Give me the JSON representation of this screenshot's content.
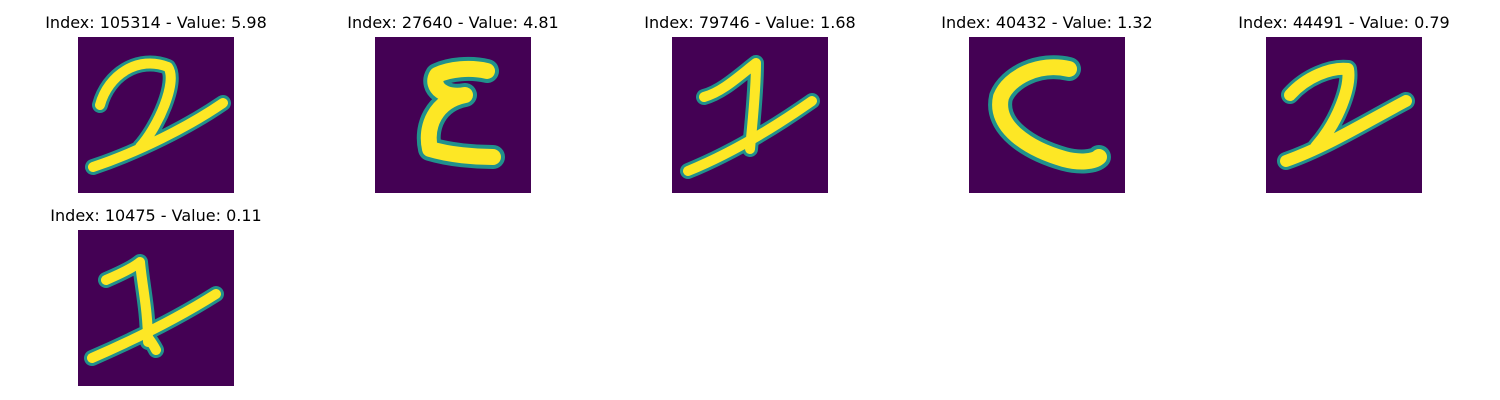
{
  "colors": {
    "background": "#440154",
    "stroke_core": "#fde725",
    "stroke_edge": "#21918c"
  },
  "panels": [
    {
      "title": "Index: 105314 - Value: 5.98",
      "glyph": "looped-two"
    },
    {
      "title": "Index: 27640 - Value: 4.81",
      "glyph": "bracket-shape"
    },
    {
      "title": "Index: 79746 - Value: 1.68",
      "glyph": "crossed-two"
    },
    {
      "title": "Index: 40432 - Value: 1.32",
      "glyph": "c-shape"
    },
    {
      "title": "Index: 44491 - Value: 0.79",
      "glyph": "two-shape"
    },
    {
      "title": "Index: 10475 - Value: 0.11",
      "glyph": "crossed-two"
    }
  ]
}
